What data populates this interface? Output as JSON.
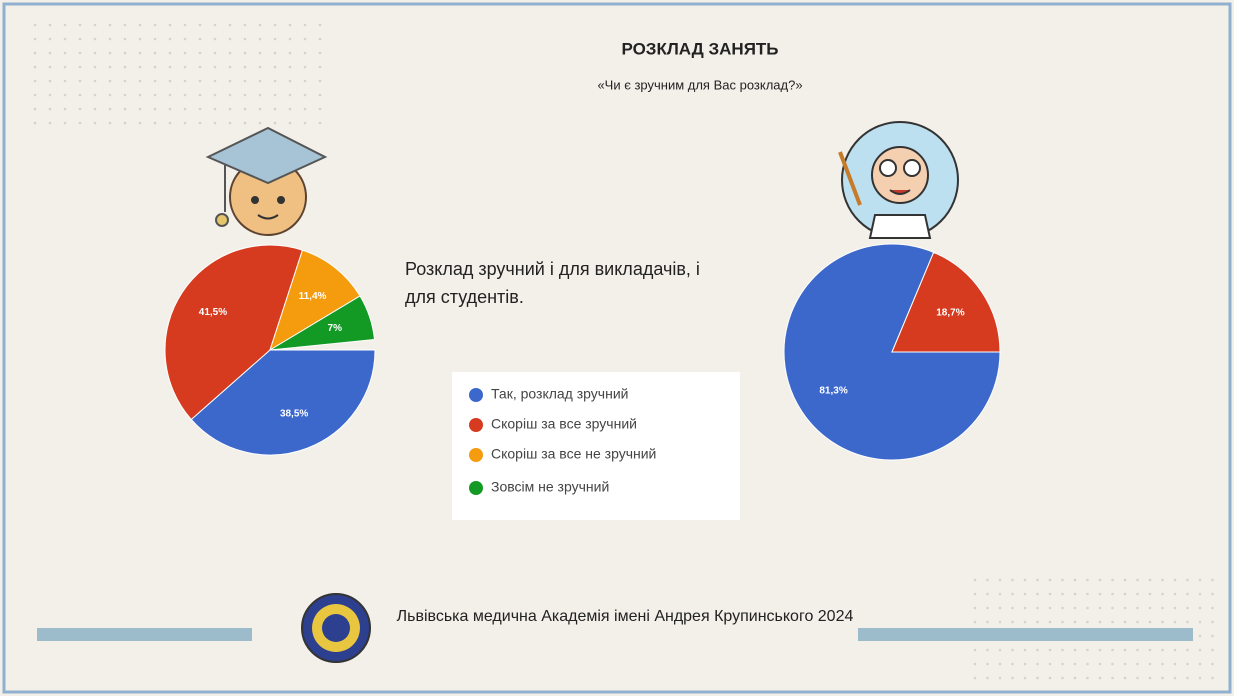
{
  "title": "РОЗКЛАД ЗАНЯТЬ",
  "subtitle": "«Чи є зручним для Вас розклад?»",
  "note": "Розклад зручний  і для викладачів, і для студентів.",
  "footer": "Львівська медична Академія імені Андрея Крупинського 2024",
  "chart_data": [
    {
      "type": "pie",
      "categories": [
        "Так, розклад зручний",
        "Скоріш за все зручний",
        "Скоріш за все не зручний",
        "Зовсім не зручний"
      ],
      "values": [
        38.5,
        41.5,
        11.4,
        7
      ],
      "value_labels": [
        "38,5%",
        "41,5%",
        "11,4%",
        "7%"
      ],
      "colors": [
        "#3c68cc",
        "#d63b1f",
        "#f59c0e",
        "#129a25"
      ]
    },
    {
      "type": "pie",
      "values": [
        81.3,
        18.7
      ],
      "value_labels": [
        "81,3%",
        "18,7%"
      ],
      "colors": [
        "#3c68cc",
        "#d63b1f"
      ]
    }
  ]
}
